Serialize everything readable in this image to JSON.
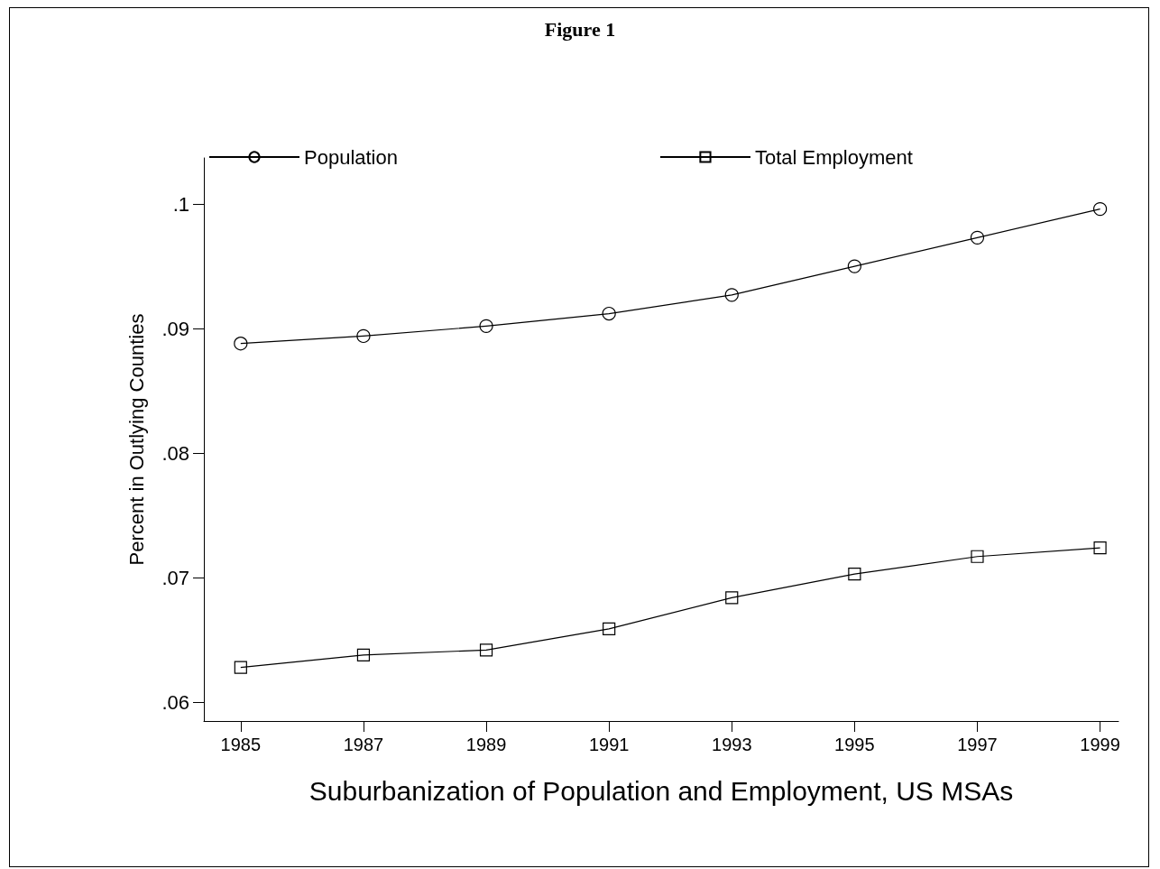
{
  "chart_data": {
    "type": "line",
    "title": "Figure 1",
    "xlabel": "Suburbanization of Population and Employment, US MSAs",
    "ylabel": "Percent in Outlying Counties",
    "x": [
      1985,
      1987,
      1989,
      1991,
      1993,
      1995,
      1997,
      1999
    ],
    "series": [
      {
        "name": "Population",
        "color": "#000000",
        "marker": "circle",
        "values": [
          0.0888,
          0.0894,
          0.0902,
          0.0912,
          0.0927,
          0.095,
          0.0973,
          0.0996
        ]
      },
      {
        "name": "Total Employment",
        "color": "#000000",
        "marker": "square",
        "values": [
          0.0628,
          0.0638,
          0.0642,
          0.0659,
          0.0684,
          0.0703,
          0.0717,
          0.0724
        ]
      }
    ],
    "xlim": [
      1984.4,
      1999.3
    ],
    "xticks": [
      1985,
      1987,
      1989,
      1991,
      1993,
      1995,
      1997,
      1999
    ],
    "ylim": [
      0.0585,
      0.1037
    ],
    "yticks": [
      {
        "value": 0.06,
        "label": ".06"
      },
      {
        "value": 0.07,
        "label": ".07"
      },
      {
        "value": 0.08,
        "label": ".08"
      },
      {
        "value": 0.09,
        "label": ".09"
      },
      {
        "value": 0.1,
        "label": ".1"
      }
    ],
    "grid": false,
    "legend": "top",
    "line_style": "solid"
  }
}
